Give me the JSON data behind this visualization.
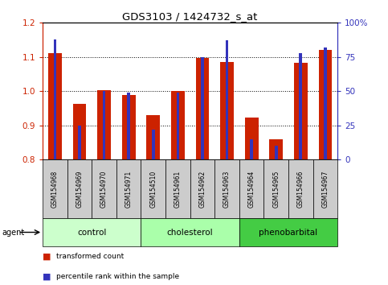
{
  "title": "GDS3103 / 1424732_s_at",
  "samples": [
    "GSM154968",
    "GSM154969",
    "GSM154970",
    "GSM154971",
    "GSM154510",
    "GSM154961",
    "GSM154962",
    "GSM154963",
    "GSM154964",
    "GSM154965",
    "GSM154966",
    "GSM154967"
  ],
  "red_values": [
    1.112,
    0.962,
    1.002,
    0.99,
    0.93,
    1.0,
    1.098,
    1.085,
    0.922,
    0.86,
    1.082,
    1.12
  ],
  "blue_values": [
    88,
    25,
    50,
    49,
    22,
    49,
    75,
    87,
    15,
    10,
    78,
    82
  ],
  "groups": [
    {
      "label": "control",
      "start": 0,
      "end": 3
    },
    {
      "label": "cholesterol",
      "start": 4,
      "end": 7
    },
    {
      "label": "phenobarbital",
      "start": 8,
      "end": 11
    }
  ],
  "group_colors": [
    "#ccffcc",
    "#aaffaa",
    "#44cc44"
  ],
  "ylim_left": [
    0.8,
    1.2
  ],
  "ylim_right": [
    0,
    100
  ],
  "yticks_left": [
    0.8,
    0.9,
    1.0,
    1.1,
    1.2
  ],
  "yticks_right": [
    0,
    25,
    50,
    75,
    100
  ],
  "ytick_labels_right": [
    "0",
    "25",
    "50",
    "75",
    "100%"
  ],
  "red_color": "#cc2200",
  "blue_color": "#3333bb",
  "bar_bottom": 0.8,
  "red_bar_width": 0.55,
  "blue_bar_width": 0.12,
  "background_plot": "#ffffff",
  "background_xtick": "#cccccc",
  "grid_yticks": [
    0.9,
    1.0,
    1.1
  ]
}
